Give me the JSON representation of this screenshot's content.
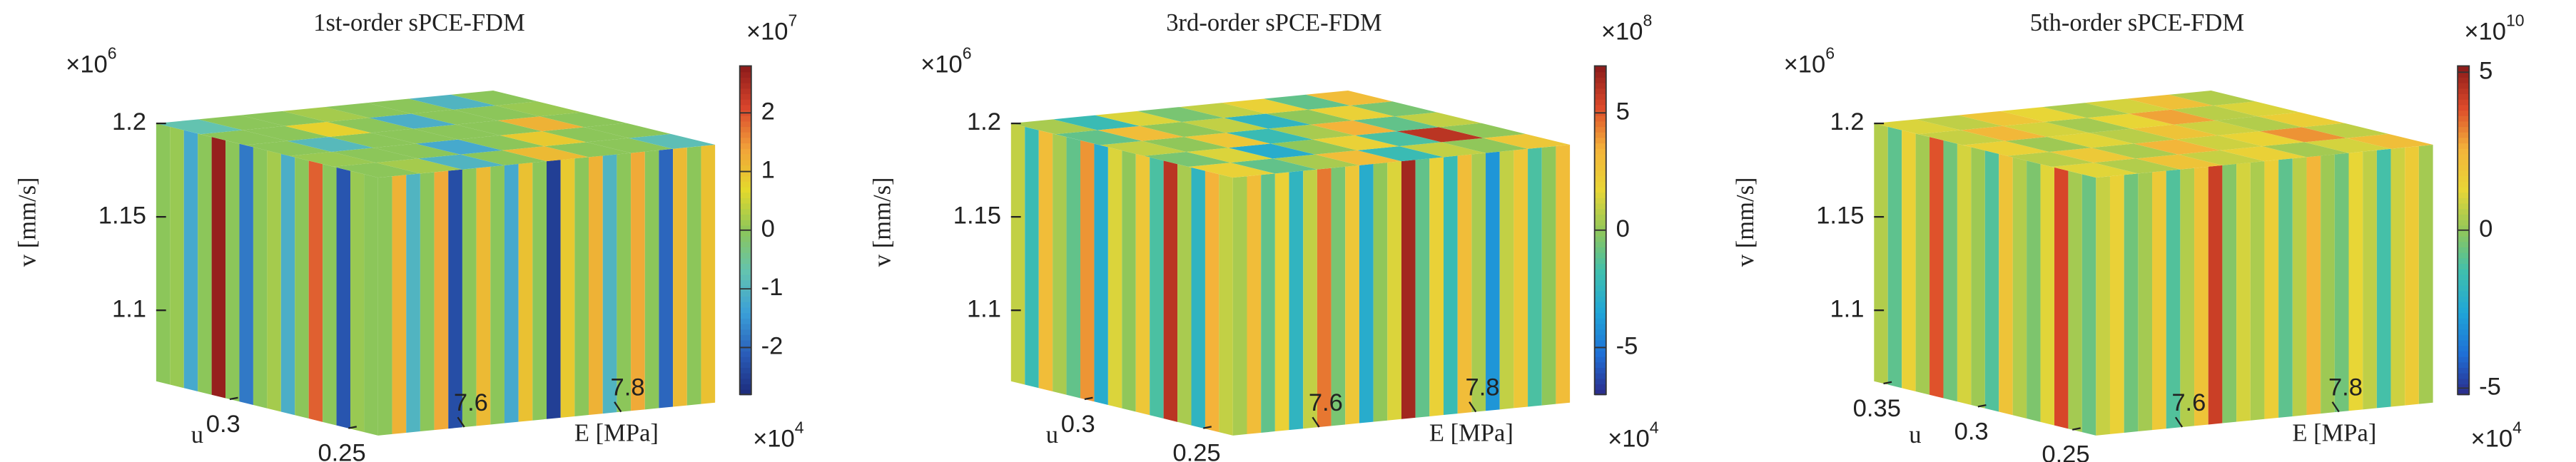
{
  "chart_data": [
    {
      "type": "voxel3d",
      "title": "1st-order sPCE-FDM",
      "xlabel": "E [MPa]",
      "ylabel": "u",
      "zlabel": "v [mm/s]",
      "xmultiplier": [
        "×10",
        "4"
      ],
      "zmultiplier": [
        "×10",
        "6"
      ],
      "cmultiplier": [
        "×10",
        "7"
      ],
      "xlim": [
        7.49,
        7.92
      ],
      "xticks": [
        7.6,
        7.8
      ],
      "ylim": [
        0.2375,
        0.331
      ],
      "yticks": [
        0.25,
        0.3
      ],
      "zlim": [
        1.062,
        1.2
      ],
      "zticks": [
        1.1,
        1.15,
        1.2
      ],
      "clim": [
        -2.8,
        2.8
      ],
      "cticks": [
        -2,
        -1,
        0,
        1,
        2
      ],
      "colormap": [
        "#1c2a7a",
        "#2a5cb8",
        "#3a9fd8",
        "#63c3b0",
        "#8cc65a",
        "#e4d92c",
        "#f2a23a",
        "#d9452c",
        "#8b1a1a"
      ],
      "left_face": [
        0,
        0.1,
        -1.2,
        0,
        2.7,
        0,
        -1.8,
        0,
        0.2,
        -1.1,
        0,
        1.9,
        0,
        -2.2,
        0.1,
        0
      ],
      "right_face": [
        0,
        1.2,
        -1,
        0,
        1.3,
        -2.3,
        0,
        1.1,
        0,
        -1.2,
        1,
        0,
        -2.5,
        0.9,
        0,
        1.2,
        -1,
        0,
        1.3,
        0,
        -2,
        1.1,
        0,
        1
      ],
      "top_face": [
        [
          0,
          0.2,
          -1,
          0,
          1.1,
          0,
          0,
          -0.8
        ],
        [
          0.1,
          0,
          0,
          -1.2,
          0,
          0.9,
          0,
          0
        ],
        [
          0,
          -0.9,
          0,
          0,
          0,
          0,
          1.2,
          0
        ],
        [
          0,
          0,
          0.8,
          0,
          -1.1,
          0,
          0,
          0.1
        ],
        [
          -0.7,
          0,
          0,
          0.2,
          0,
          0,
          -1,
          0
        ]
      ]
    },
    {
      "type": "voxel3d",
      "title": "3rd-order sPCE-FDM",
      "xlabel": "E [MPa]",
      "ylabel": "u",
      "zlabel": "v [mm/s]",
      "xmultiplier": [
        "×10",
        "4"
      ],
      "zmultiplier": [
        "×10",
        "6"
      ],
      "cmultiplier": [
        "×10",
        "8"
      ],
      "xlim": [
        7.49,
        7.92
      ],
      "xticks": [
        7.6,
        7.8
      ],
      "ylim": [
        0.2375,
        0.331
      ],
      "yticks": [
        0.25,
        0.3
      ],
      "zlim": [
        1.062,
        1.2
      ],
      "zticks": [
        1.1,
        1.15,
        1.2
      ],
      "clim": [
        -7,
        7
      ],
      "cticks": [
        -5,
        0,
        5
      ],
      "colormap": [
        "#2b2a8a",
        "#1f6fd6",
        "#1fa5d8",
        "#3fbfae",
        "#90c75a",
        "#e8d636",
        "#f4b33a",
        "#dd4a2a",
        "#8b1a1a"
      ],
      "left_face": [
        1,
        -2,
        3,
        0.5,
        -1,
        4,
        -3,
        1.5,
        0,
        2.5,
        -1.5,
        6,
        0.5,
        -2.5,
        3.5,
        1
      ],
      "right_face": [
        0.5,
        3,
        -1,
        2,
        -2.5,
        1,
        4.5,
        -0.5,
        2.5,
        -3,
        0,
        1.5,
        6.5,
        -1,
        2,
        -2,
        3,
        0.5,
        -4,
        1,
        2.5,
        -1.5,
        0,
        3
      ],
      "top_face": [
        [
          2,
          -1,
          0.5,
          3,
          -2,
          1,
          0,
          2.5
        ],
        [
          -0.5,
          1.5,
          -3,
          0,
          2,
          -1.5,
          6,
          0
        ],
        [
          1,
          0,
          2.5,
          -2,
          0.5,
          3.5,
          -1,
          1
        ],
        [
          -1,
          3,
          0,
          1,
          -2.5,
          0,
          2,
          -0.5
        ],
        [
          0.5,
          -2,
          1.5,
          -0.5,
          1,
          2,
          -1,
          3
        ]
      ]
    },
    {
      "type": "voxel3d",
      "title": "5th-order sPCE-FDM",
      "xlabel": "E [MPa]",
      "ylabel": "u",
      "zlabel": "v [mm/s]",
      "xmultiplier": [
        "×10",
        "4"
      ],
      "zmultiplier": [
        "×10",
        "6"
      ],
      "cmultiplier": [
        "×10",
        "10"
      ],
      "xlim": [
        7.49,
        7.92
      ],
      "xticks": [
        7.6,
        7.8
      ],
      "ylim": [
        0.2375,
        0.355
      ],
      "yticks": [
        0.25,
        0.3,
        0.35
      ],
      "zlim": [
        1.062,
        1.2
      ],
      "zticks": [
        1.1,
        1.15,
        1.2
      ],
      "clim": [
        -5.2,
        5.2
      ],
      "cticks": [
        -5,
        0,
        5
      ],
      "colormap": [
        "#2b2a8a",
        "#1f6fd6",
        "#1fa5d8",
        "#3fbfae",
        "#90c75a",
        "#e8d636",
        "#f4b33a",
        "#dd4a2a",
        "#8b1a1a"
      ],
      "left_face": [
        0.5,
        -0.8,
        1.5,
        0.3,
        3.8,
        -0.5,
        1,
        0.2,
        -1,
        2,
        0.5,
        -0.3,
        1.2,
        4,
        0.3,
        -0.6
      ],
      "right_face": [
        0.8,
        1.5,
        -0.5,
        0.3,
        1.8,
        -1,
        0.5,
        2,
        4.2,
        -0.2,
        1,
        0.4,
        1.6,
        -0.8,
        0.6,
        2.5,
        0.2,
        -0.5,
        1.3,
        0.7,
        -1.2,
        0.9,
        1.7,
        0.3
      ],
      "top_face": [
        [
          1.2,
          0.5,
          2,
          0.8,
          1.5,
          0.3,
          1,
          2.2
        ],
        [
          0.6,
          1.8,
          0.4,
          2.5,
          0.9,
          1.4,
          3,
          0.7
        ],
        [
          1.5,
          0.2,
          1.2,
          0.6,
          2,
          0.9,
          0.5,
          1.6
        ],
        [
          0.8,
          2.4,
          1,
          0.3,
          1.3,
          2.8,
          0.6,
          1.1
        ],
        [
          1.1,
          0.7,
          1.9,
          1.3,
          0.4,
          1,
          2.1,
          0.5
        ]
      ]
    }
  ]
}
